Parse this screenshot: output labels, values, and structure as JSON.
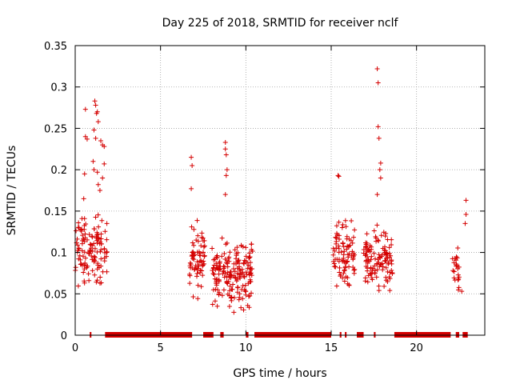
{
  "chart_data": {
    "type": "scatter",
    "title": "Day 225 of 2018, SRMTID for receiver nclf",
    "xlabel": "GPS time / hours",
    "ylabel": "SRMTID / TECUs",
    "xlim": [
      0,
      24
    ],
    "ylim": [
      0,
      0.35
    ],
    "xticks": [
      0,
      5,
      10,
      15,
      20
    ],
    "yticks": [
      0,
      0.05,
      0.1,
      0.15,
      0.2,
      0.25,
      0.3,
      0.35
    ],
    "xtick_labels": [
      "0",
      "5",
      "10",
      "15",
      "20"
    ],
    "ytick_labels": [
      "0",
      "0.05",
      "0.1",
      "0.15",
      "0.2",
      "0.25",
      "0.3",
      "0.35"
    ],
    "grid": true,
    "marker": "+",
    "marker_color": "#d40000",
    "clusters": [
      {
        "t_start": 0.0,
        "t_end": 1.9,
        "y_min": 0.045,
        "y_max": 0.16,
        "n": 130
      },
      {
        "t_start": 6.7,
        "t_end": 7.6,
        "y_min": 0.035,
        "y_max": 0.15,
        "n": 70
      },
      {
        "t_start": 8.0,
        "t_end": 10.4,
        "y_min": 0.02,
        "y_max": 0.13,
        "n": 190
      },
      {
        "t_start": 15.1,
        "t_end": 16.4,
        "y_min": 0.045,
        "y_max": 0.15,
        "n": 90
      },
      {
        "t_start": 16.9,
        "t_end": 18.6,
        "y_min": 0.04,
        "y_max": 0.14,
        "n": 120
      },
      {
        "t_start": 22.1,
        "t_end": 22.5,
        "y_min": 0.035,
        "y_max": 0.115,
        "n": 22
      }
    ],
    "highlights": [
      [
        0.6,
        0.273
      ],
      [
        0.6,
        0.24
      ],
      [
        0.55,
        0.195
      ],
      [
        0.5,
        0.165
      ],
      [
        0.7,
        0.237
      ],
      [
        1.1,
        0.248
      ],
      [
        1.15,
        0.283
      ],
      [
        1.2,
        0.278
      ],
      [
        1.25,
        0.268
      ],
      [
        1.3,
        0.27
      ],
      [
        1.35,
        0.258
      ],
      [
        1.2,
        0.238
      ],
      [
        1.5,
        0.235
      ],
      [
        1.6,
        0.23
      ],
      [
        1.7,
        0.228
      ],
      [
        1.05,
        0.21
      ],
      [
        1.1,
        0.2
      ],
      [
        1.3,
        0.197
      ],
      [
        1.6,
        0.19
      ],
      [
        1.7,
        0.207
      ],
      [
        1.45,
        0.175
      ],
      [
        1.35,
        0.182
      ],
      [
        6.8,
        0.215
      ],
      [
        6.85,
        0.205
      ],
      [
        6.8,
        0.177
      ],
      [
        8.8,
        0.233
      ],
      [
        8.8,
        0.225
      ],
      [
        8.85,
        0.218
      ],
      [
        8.9,
        0.2
      ],
      [
        8.85,
        0.193
      ],
      [
        8.8,
        0.17
      ],
      [
        15.4,
        0.193
      ],
      [
        15.45,
        0.192
      ],
      [
        17.7,
        0.322
      ],
      [
        17.75,
        0.305
      ],
      [
        17.75,
        0.252
      ],
      [
        17.8,
        0.238
      ],
      [
        17.9,
        0.208
      ],
      [
        17.85,
        0.2
      ],
      [
        17.9,
        0.19
      ],
      [
        17.7,
        0.17
      ],
      [
        22.9,
        0.163
      ],
      [
        22.9,
        0.146
      ],
      [
        22.85,
        0.135
      ],
      [
        22.65,
        0.053
      ]
    ],
    "zero_bars": [
      [
        0.85,
        0.95
      ],
      [
        1.75,
        6.85
      ],
      [
        7.5,
        8.1
      ],
      [
        8.5,
        8.7
      ],
      [
        10.0,
        10.15
      ],
      [
        10.5,
        15.0
      ],
      [
        15.5,
        15.6
      ],
      [
        15.8,
        15.9
      ],
      [
        16.5,
        16.9
      ],
      [
        17.5,
        17.6
      ],
      [
        18.7,
        22.0
      ],
      [
        22.3,
        22.5
      ],
      [
        22.7,
        23.0
      ]
    ]
  }
}
